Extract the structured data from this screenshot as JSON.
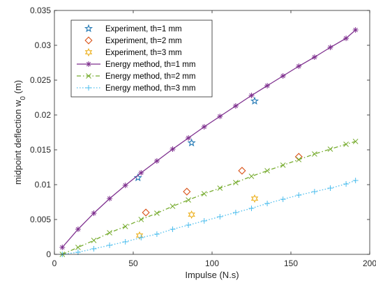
{
  "chart_data": {
    "type": "line",
    "xlabel": "Impulse (N.s)",
    "ylabel_main": "midpoint deflection w",
    "ylabel_sub": "0",
    "ylabel_unit": " (m)",
    "xlim": [
      0,
      200
    ],
    "ylim": [
      0,
      0.035
    ],
    "xticks": [
      0,
      50,
      100,
      150,
      200
    ],
    "xtick_labels": [
      "0",
      "50",
      "100",
      "150",
      "200"
    ],
    "yticks": [
      0,
      0.005,
      0.01,
      0.015,
      0.02,
      0.025,
      0.03,
      0.035
    ],
    "ytick_labels": [
      "0",
      "0.005",
      "0.01",
      "0.015",
      "0.02",
      "0.025",
      "0.03",
      "0.035"
    ],
    "grid": false,
    "legend_position": "top-left",
    "series": [
      {
        "name": "Experiment, th=1 mm",
        "kind": "scatter",
        "marker": "pentagram",
        "color": "#1f77b4",
        "x": [
          53,
          87,
          127
        ],
        "y": [
          0.011,
          0.016,
          0.022
        ]
      },
      {
        "name": "Experiment, th=2 mm",
        "kind": "scatter",
        "marker": "diamond",
        "color": "#d95319",
        "x": [
          58,
          84,
          119,
          155
        ],
        "y": [
          0.006,
          0.009,
          0.012,
          0.014
        ]
      },
      {
        "name": "Experiment, th=3 mm",
        "kind": "scatter",
        "marker": "hexagram",
        "color": "#edb120",
        "x": [
          54,
          87,
          127
        ],
        "y": [
          0.0027,
          0.0057,
          0.008
        ]
      },
      {
        "name": "Energy method, th=1 mm",
        "kind": "line",
        "marker": "asterisk",
        "line": "solid",
        "color": "#7e2f8e",
        "x": [
          5,
          15,
          25,
          35,
          45,
          55,
          65,
          75,
          85,
          95,
          105,
          115,
          125,
          135,
          145,
          155,
          165,
          175,
          185,
          191
        ],
        "y": [
          0.001,
          0.0036,
          0.0059,
          0.008,
          0.0099,
          0.0117,
          0.0134,
          0.0151,
          0.0167,
          0.0183,
          0.0198,
          0.0213,
          0.0228,
          0.0242,
          0.0256,
          0.027,
          0.0283,
          0.0297,
          0.031,
          0.0322
        ]
      },
      {
        "name": "Energy method, th=2 mm",
        "kind": "line",
        "marker": "x",
        "line": "dashdot",
        "color": "#77ac30",
        "x": [
          5,
          15,
          25,
          35,
          45,
          55,
          65,
          75,
          85,
          95,
          105,
          115,
          125,
          135,
          145,
          155,
          165,
          175,
          185,
          191
        ],
        "y": [
          0.0,
          0.001,
          0.002,
          0.0031,
          0.004,
          0.005,
          0.0059,
          0.0069,
          0.0078,
          0.0087,
          0.0095,
          0.0103,
          0.0112,
          0.012,
          0.0128,
          0.0136,
          0.0144,
          0.0151,
          0.0158,
          0.0162
        ]
      },
      {
        "name": "Energy method, th=3 mm",
        "kind": "line",
        "marker": "plus",
        "line": "dotted",
        "color": "#4dbeee",
        "x": [
          5,
          15,
          25,
          35,
          45,
          55,
          65,
          75,
          85,
          95,
          105,
          115,
          125,
          135,
          145,
          155,
          165,
          175,
          185,
          191
        ],
        "y": [
          0.0,
          0.0003,
          0.0008,
          0.0013,
          0.0018,
          0.0024,
          0.0029,
          0.0036,
          0.0042,
          0.0048,
          0.0054,
          0.006,
          0.0066,
          0.0073,
          0.0079,
          0.0085,
          0.009,
          0.0095,
          0.0101,
          0.0106
        ]
      }
    ]
  }
}
